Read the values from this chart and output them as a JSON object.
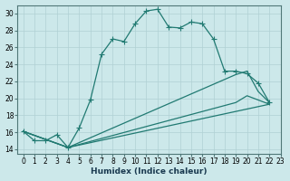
{
  "xlabel": "Humidex (Indice chaleur)",
  "xlim": [
    -0.5,
    23
  ],
  "ylim": [
    13.5,
    31
  ],
  "yticks": [
    14,
    16,
    18,
    20,
    22,
    24,
    26,
    28,
    30
  ],
  "xticks": [
    0,
    1,
    2,
    3,
    4,
    5,
    6,
    7,
    8,
    9,
    10,
    11,
    12,
    13,
    14,
    15,
    16,
    17,
    18,
    19,
    20,
    21,
    22,
    23
  ],
  "xtick_labels": [
    "0",
    "1",
    "2",
    "3",
    "4",
    "5",
    "6",
    "7",
    "8",
    "9",
    "10",
    "11",
    "12",
    "13",
    "14",
    "15",
    "16",
    "17",
    "18",
    "19",
    "20",
    "21",
    "22",
    "23"
  ],
  "background_color": "#cce8ea",
  "grid_color": "#b0d0d4",
  "line_color": "#217a72",
  "line1_x": [
    0,
    1,
    2,
    3,
    4,
    5,
    6,
    7,
    8,
    9,
    10,
    11,
    12,
    13,
    14,
    15,
    16,
    17,
    18,
    19,
    20,
    21,
    22
  ],
  "line1_y": [
    16.1,
    15.0,
    15.0,
    15.7,
    14.2,
    16.5,
    19.8,
    25.2,
    27.0,
    26.7,
    28.8,
    30.3,
    30.5,
    28.4,
    28.3,
    29.0,
    28.8,
    27.0,
    23.2,
    23.2,
    22.9,
    21.8,
    19.5
  ],
  "line2_x": [
    0,
    4,
    19,
    20,
    21,
    22
  ],
  "line2_y": [
    16.1,
    14.2,
    22.8,
    23.2,
    20.8,
    19.5
  ],
  "line3_x": [
    0,
    4,
    19,
    20,
    21,
    22
  ],
  "line3_y": [
    16.1,
    14.2,
    19.5,
    20.3,
    19.8,
    19.3
  ],
  "line4_x": [
    0,
    4,
    22
  ],
  "line4_y": [
    16.1,
    14.2,
    19.3
  ],
  "marker": "+",
  "markersize": 4,
  "tick_fontsize": 5.5,
  "xlabel_fontsize": 6.5
}
